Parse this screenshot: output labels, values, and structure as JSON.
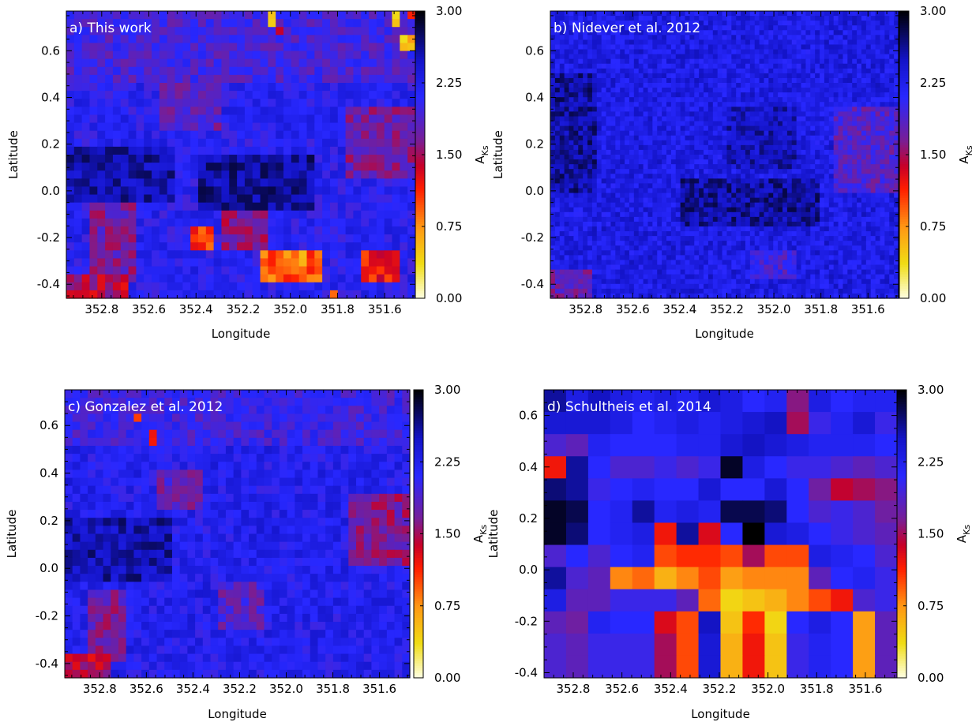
{
  "chart_data": [
    {
      "type": "heatmap",
      "panel_label": "a) This work",
      "xlabel": "Longitude",
      "ylabel": "Latitude",
      "x_ticks": [
        "352.8",
        "352.6",
        "352.4",
        "352.2",
        "352.0",
        "351.8",
        "351.6"
      ],
      "y_ticks": [
        "0.6",
        "0.4",
        "0.2",
        "0.0",
        "-0.2",
        "-0.4"
      ],
      "xlim": [
        352.95,
        351.47
      ],
      "ylim": [
        -0.46,
        0.77
      ],
      "colorbar": {
        "label": "A",
        "label_subscript": "Ks",
        "ticks": [
          "0.00",
          "0.75",
          "1.50",
          "2.25",
          "3.00"
        ],
        "range": [
          0,
          3
        ]
      },
      "grid": {
        "nx": 45,
        "ny": 36
      },
      "typical_value": 2.15,
      "features": [
        {
          "lon": 352.95,
          "lat": 0.77,
          "lon2": 351.47,
          "lat2": 0.45,
          "value": 1.95
        },
        {
          "lon": 352.55,
          "lat": 0.45,
          "lon2": 352.3,
          "lat2": 0.25,
          "value": 1.8
        },
        {
          "lon": 351.75,
          "lat": 0.35,
          "lon2": 351.47,
          "lat2": 0.05,
          "value": 1.7
        },
        {
          "lon": 352.95,
          "lat": 0.2,
          "lon2": 352.5,
          "lat2": -0.05,
          "value": 2.55
        },
        {
          "lon": 352.4,
          "lat": 0.15,
          "lon2": 351.9,
          "lat2": -0.1,
          "value": 2.6
        },
        {
          "lon": 352.85,
          "lat": -0.05,
          "lon2": 352.65,
          "lat2": -0.4,
          "value": 1.7
        },
        {
          "lon": 352.95,
          "lat": -0.35,
          "lon2": 352.7,
          "lat2": -0.46,
          "value": 1.45
        },
        {
          "lon": 352.3,
          "lat": -0.1,
          "lon2": 352.1,
          "lat2": -0.25,
          "value": 1.6
        },
        {
          "lon": 352.42,
          "lat": -0.16,
          "lon2": 352.32,
          "lat2": -0.24,
          "value": 1.05
        },
        {
          "lon": 352.12,
          "lat": -0.25,
          "lon2": 351.88,
          "lat2": -0.38,
          "value": 0.95
        },
        {
          "lon": 352.04,
          "lat": -0.26,
          "lon2": 351.94,
          "lat2": -0.32,
          "value": 0.75
        },
        {
          "lon": 351.7,
          "lat": -0.25,
          "lon2": 351.52,
          "lat2": -0.38,
          "value": 1.2
        },
        {
          "lon": 351.82,
          "lat": -0.42,
          "lon2": 351.79,
          "lat2": -0.46,
          "value": 1.0
        },
        {
          "lon": 352.1,
          "lat": 0.77,
          "lon2": 352.07,
          "lat2": 0.7,
          "value": 0.3
        },
        {
          "lon": 352.06,
          "lat": 0.7,
          "lon2": 352.03,
          "lat2": 0.66,
          "value": 1.3
        },
        {
          "lon": 351.52,
          "lat": 0.68,
          "lon2": 351.47,
          "lat2": 0.6,
          "value": 0.55
        },
        {
          "lon": 351.56,
          "lat": 0.77,
          "lon2": 351.52,
          "lat2": 0.7,
          "value": 0.45
        },
        {
          "lon": 351.51,
          "lat": 0.77,
          "lon2": 351.48,
          "lat2": 0.73,
          "value": 1.2
        }
      ]
    },
    {
      "type": "heatmap",
      "panel_label": "b) Nidever et al. 2012",
      "xlabel": "Longitude",
      "ylabel": "Latitude",
      "x_ticks": [
        "352.8",
        "352.6",
        "352.4",
        "352.2",
        "352.0",
        "351.8",
        "351.6"
      ],
      "y_ticks": [
        "0.6",
        "0.4",
        "0.2",
        "0.0",
        "-0.2",
        "-0.4"
      ],
      "xlim": [
        352.95,
        351.47
      ],
      "ylim": [
        -0.46,
        0.77
      ],
      "colorbar": {
        "label": "A",
        "label_subscript": "Ks",
        "ticks": [
          "0.00",
          "0.75",
          "1.50",
          "2.25",
          "3.00"
        ],
        "range": [
          0,
          3
        ]
      },
      "grid": {
        "nx": 75,
        "ny": 60
      },
      "typical_value": 2.3,
      "features": [
        {
          "lon": 352.95,
          "lat": 0.5,
          "lon2": 352.75,
          "lat2": 0.0,
          "value": 2.6
        },
        {
          "lon": 352.4,
          "lat": 0.05,
          "lon2": 351.8,
          "lat2": -0.15,
          "value": 2.6
        },
        {
          "lon": 352.2,
          "lat": 0.35,
          "lon2": 351.9,
          "lat2": 0.1,
          "value": 2.5
        },
        {
          "lon": 351.75,
          "lat": 0.35,
          "lon2": 351.47,
          "lat2": 0.0,
          "value": 1.85
        },
        {
          "lon": 352.95,
          "lat": -0.33,
          "lon2": 352.78,
          "lat2": -0.46,
          "value": 1.75
        },
        {
          "lon": 352.1,
          "lat": -0.25,
          "lon2": 351.9,
          "lat2": -0.38,
          "value": 1.95
        }
      ]
    },
    {
      "type": "heatmap",
      "panel_label": "c) Gonzalez et al. 2012",
      "xlabel": "Longitude",
      "ylabel": "Latitude",
      "x_ticks": [
        "352.8",
        "352.6",
        "352.4",
        "352.2",
        "352.0",
        "351.8",
        "351.6"
      ],
      "y_ticks": [
        "0.6",
        "0.4",
        "0.2",
        "0.0",
        "-0.2",
        "-0.4"
      ],
      "xlim": [
        352.95,
        351.47
      ],
      "ylim": [
        -0.46,
        0.75
      ],
      "colorbar": {
        "label": "A",
        "label_subscript": "Ks",
        "ticks": [
          "0.00",
          "0.75",
          "1.50",
          "2.25",
          "3.00"
        ],
        "range": [
          0,
          3
        ]
      },
      "grid": {
        "nx": 45,
        "ny": 36
      },
      "typical_value": 2.2,
      "features": [
        {
          "lon": 352.95,
          "lat": 0.75,
          "lon2": 351.47,
          "lat2": 0.5,
          "value": 2.0
        },
        {
          "lon": 352.55,
          "lat": 0.4,
          "lon2": 352.35,
          "lat2": 0.25,
          "value": 1.8
        },
        {
          "lon": 351.72,
          "lat": 0.3,
          "lon2": 351.47,
          "lat2": 0.0,
          "value": 1.65
        },
        {
          "lon": 352.95,
          "lat": 0.2,
          "lon2": 352.5,
          "lat2": -0.05,
          "value": 2.55
        },
        {
          "lon": 352.85,
          "lat": -0.1,
          "lon2": 352.68,
          "lat2": -0.38,
          "value": 1.7
        },
        {
          "lon": 352.95,
          "lat": -0.35,
          "lon2": 352.75,
          "lat2": -0.46,
          "value": 1.45
        },
        {
          "lon": 352.3,
          "lat": -0.05,
          "lon2": 352.1,
          "lat2": -0.25,
          "value": 1.85
        },
        {
          "lon": 352.65,
          "lat": 0.65,
          "lon2": 352.62,
          "lat2": 0.61,
          "value": 1.25
        },
        {
          "lon": 352.59,
          "lat": 0.57,
          "lon2": 352.56,
          "lat2": 0.53,
          "value": 1.25
        }
      ]
    },
    {
      "type": "heatmap",
      "panel_label": "d) Schultheis et al. 2014",
      "xlabel": "Longitude",
      "ylabel": "Latitude",
      "x_ticks": [
        "352.8",
        "352.6",
        "352.4",
        "352.2",
        "352.0",
        "351.8",
        "351.6"
      ],
      "y_ticks": [
        "0.6",
        "0.4",
        "0.2",
        "0.0",
        "-0.2",
        "-0.4"
      ],
      "xlim": [
        352.92,
        351.47
      ],
      "ylim": [
        -0.42,
        0.7
      ],
      "colorbar": {
        "label": "A",
        "label_subscript": "Ks",
        "ticks": [
          "0.00",
          "0.75",
          "1.50",
          "2.25",
          "3.00"
        ],
        "range": [
          0,
          3
        ]
      },
      "grid": {
        "nx": 16,
        "ny": 13
      },
      "values": [
        [
          2.6,
          2.3,
          2.5,
          2.3,
          2.2,
          2.3,
          2.2,
          2.4,
          2.3,
          2.1,
          2.2,
          1.6,
          2.3,
          2.1,
          2.2,
          2.2
        ],
        [
          2.4,
          2.4,
          2.4,
          2.3,
          2.1,
          2.2,
          2.3,
          2.2,
          2.3,
          2.4,
          2.5,
          1.5,
          2.0,
          2.2,
          2.4,
          2.0
        ],
        [
          1.9,
          1.8,
          2.2,
          2.1,
          2.1,
          2.1,
          2.2,
          2.2,
          2.4,
          2.5,
          2.4,
          2.3,
          2.2,
          2.2,
          2.2,
          2.1
        ],
        [
          1.2,
          2.6,
          2.1,
          1.9,
          1.9,
          2.0,
          1.9,
          2.0,
          2.9,
          2.3,
          2.1,
          2.0,
          2.0,
          1.9,
          1.8,
          1.9
        ],
        [
          2.7,
          2.6,
          2.0,
          2.1,
          2.2,
          2.1,
          2.1,
          2.4,
          2.1,
          2.1,
          2.4,
          2.1,
          1.7,
          1.4,
          1.5,
          1.6
        ],
        [
          2.9,
          2.8,
          2.1,
          2.2,
          2.6,
          2.2,
          2.3,
          2.2,
          2.8,
          2.8,
          2.7,
          2.1,
          1.9,
          2.0,
          1.9,
          1.7
        ],
        [
          2.9,
          2.7,
          2.1,
          2.2,
          2.3,
          1.2,
          2.6,
          1.3,
          2.1,
          3.0,
          2.4,
          2.3,
          2.1,
          2.0,
          1.9,
          1.8
        ],
        [
          1.9,
          2.1,
          1.9,
          2.1,
          2.2,
          1.0,
          1.1,
          1.1,
          1.0,
          1.5,
          1.0,
          1.0,
          2.3,
          2.2,
          2.1,
          1.9
        ],
        [
          2.6,
          1.9,
          1.8,
          0.8,
          0.9,
          0.6,
          0.8,
          1.0,
          0.7,
          0.8,
          0.8,
          0.8,
          1.8,
          2.1,
          2.2,
          2.0
        ],
        [
          2.3,
          1.8,
          1.8,
          2.0,
          2.0,
          2.0,
          1.8,
          0.9,
          0.4,
          0.5,
          0.6,
          0.8,
          1.0,
          1.2,
          1.9,
          2.0
        ],
        [
          1.8,
          1.7,
          2.2,
          2.1,
          2.1,
          1.3,
          1.0,
          2.5,
          0.5,
          1.1,
          0.4,
          2.1,
          2.3,
          2.1,
          0.7,
          1.8
        ],
        [
          1.9,
          1.8,
          2.0,
          2.0,
          2.0,
          1.5,
          1.0,
          2.4,
          0.6,
          1.2,
          0.5,
          2.0,
          2.2,
          2.1,
          0.7,
          1.8
        ],
        [
          1.9,
          1.8,
          2.0,
          2.0,
          2.0,
          1.5,
          1.0,
          2.4,
          0.6,
          1.2,
          0.5,
          2.0,
          2.2,
          2.1,
          0.7,
          1.8
        ]
      ]
    }
  ]
}
